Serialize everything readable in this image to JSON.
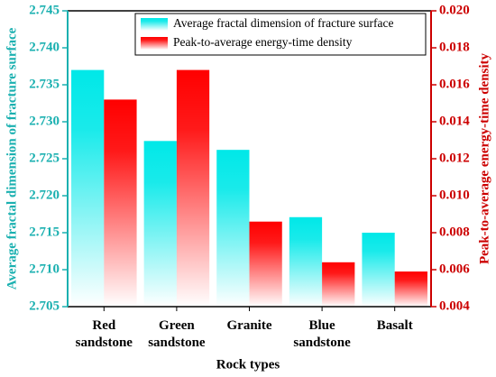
{
  "chart_data": {
    "type": "bar",
    "x_label": "Rock types",
    "y_label": "Average fractal dimension of fracture surface",
    "y2_label": "Peak-to-average energy-time density",
    "categories": [
      "Red sandstone",
      "Green sandstone",
      "Granite",
      "Blue sandstone",
      "Basalt"
    ],
    "series": [
      {
        "name": "Average fractal dimension of fracture surface",
        "color": "#00e8e8",
        "axis": "y",
        "values": [
          2.737,
          2.7274,
          2.7262,
          2.7171,
          2.715
        ]
      },
      {
        "name": "Peak-to-average energy-time density",
        "color": "#ff0000",
        "axis": "y2",
        "values": [
          0.0152,
          0.0168,
          0.0086,
          0.0064,
          0.0059
        ]
      }
    ],
    "ylim": [
      2.705,
      2.745
    ],
    "yticks": [
      2.705,
      {
        "value": 2.71,
        "label": "2.710"
      },
      2.715,
      {
        "value": 2.72,
        "label": "2.720"
      },
      2.725,
      {
        "value": 2.73,
        "label": "2.730"
      },
      2.735,
      {
        "value": 2.74,
        "label": "2.740"
      },
      2.745
    ],
    "y2lim": [
      0.004,
      0.02
    ],
    "y2ticks": [
      0.004,
      0.006,
      0.008,
      {
        "value": 0.01,
        "label": "0.010"
      },
      0.012,
      0.014,
      0.016,
      0.018,
      {
        "value": 0.02,
        "label": "0.020"
      }
    ],
    "y_color": "#1ab0b0",
    "y2_color": "#cc0000"
  }
}
